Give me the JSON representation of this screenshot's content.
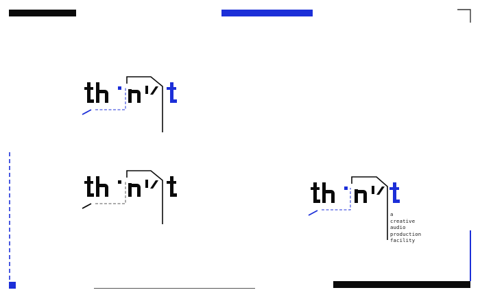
{
  "colors": {
    "ink": "#0a0a0a",
    "accent": "#1c2fd8",
    "rule": "#555555"
  },
  "logos": [
    {
      "variant": "blue-accent",
      "wordmark": "think it"
    },
    {
      "variant": "monochrome",
      "wordmark": "think it"
    },
    {
      "variant": "blue-accent-with-tagline",
      "wordmark": "think it",
      "tagline": [
        "a",
        "creative",
        "audio",
        "production",
        "facility"
      ]
    }
  ]
}
